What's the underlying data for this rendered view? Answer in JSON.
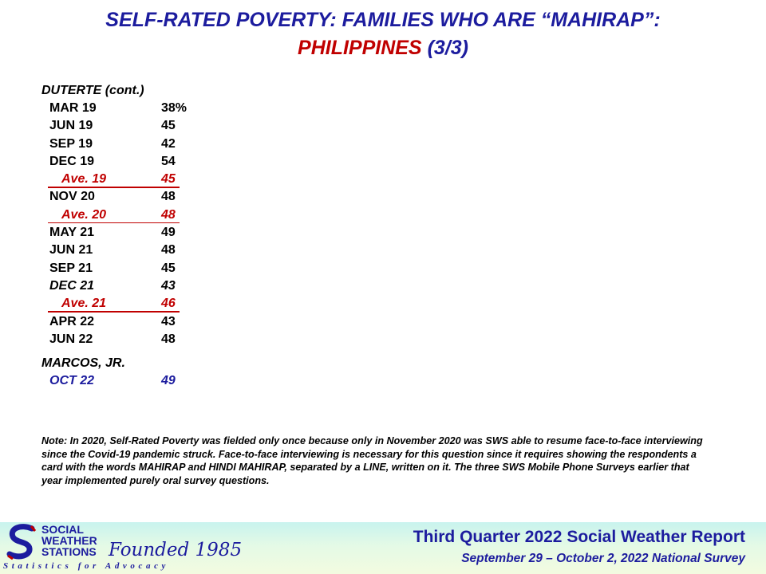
{
  "title": {
    "line1": "SELF-RATED POVERTY: FAMILIES WHO ARE “MAHIRAP”:",
    "line2_country": "PHILIPPINES",
    "line2_part": "(3/3)"
  },
  "duterte": {
    "heading": "DUTERTE (cont.)",
    "rows": [
      {
        "label": "MAR 19",
        "value": "38%"
      },
      {
        "label": "JUN  19",
        "value": "45"
      },
      {
        "label": "SEP  19",
        "value": "42"
      },
      {
        "label": "DEC  19",
        "value": "54"
      },
      {
        "label": "Ave. 19",
        "value": "45"
      },
      {
        "label": "NOV  20",
        "value": "48"
      },
      {
        "label": "Ave. 20",
        "value": "48"
      },
      {
        "label": "MAY  21",
        "value": "49"
      },
      {
        "label": "JUN  21",
        "value": "48"
      },
      {
        "label": "SEP  21",
        "value": "45"
      },
      {
        "label": "DEC  21",
        "value": "43"
      },
      {
        "label": "Ave. 21",
        "value": "46"
      },
      {
        "label": "APR  22",
        "value": "43"
      },
      {
        "label": "JUN  22",
        "value": "48"
      }
    ]
  },
  "marcos": {
    "heading": "MARCOS, JR.",
    "rows": [
      {
        "label": "OCT 22",
        "value": "49"
      }
    ]
  },
  "note": "Note: In 2020, Self-Rated Poverty was fielded only once because only in November 2020 was SWS able to resume face-to-face interviewing since the Covid-19 pandemic struck. Face-to-face interviewing is necessary for this question since it requires showing the respondents a card with the words MAHIRAP and HINDI MAHIRAP, separated by a LINE, written on it. The three SWS Mobile Phone Surveys earlier that year implemented purely oral survey questions.",
  "footer": {
    "logo_line1": "SOCIAL",
    "logo_line2": "WEATHER",
    "logo_line3": "STATIONS",
    "founded": "Founded 1985",
    "tagline": "Statistics for Advocacy",
    "report_title": "Third Quarter 2022 Social Weather Report",
    "report_subtitle": "September 29 – October 2, 2022 National Survey"
  },
  "colors": {
    "navy": "#1c1c9e",
    "red": "#c00000"
  }
}
